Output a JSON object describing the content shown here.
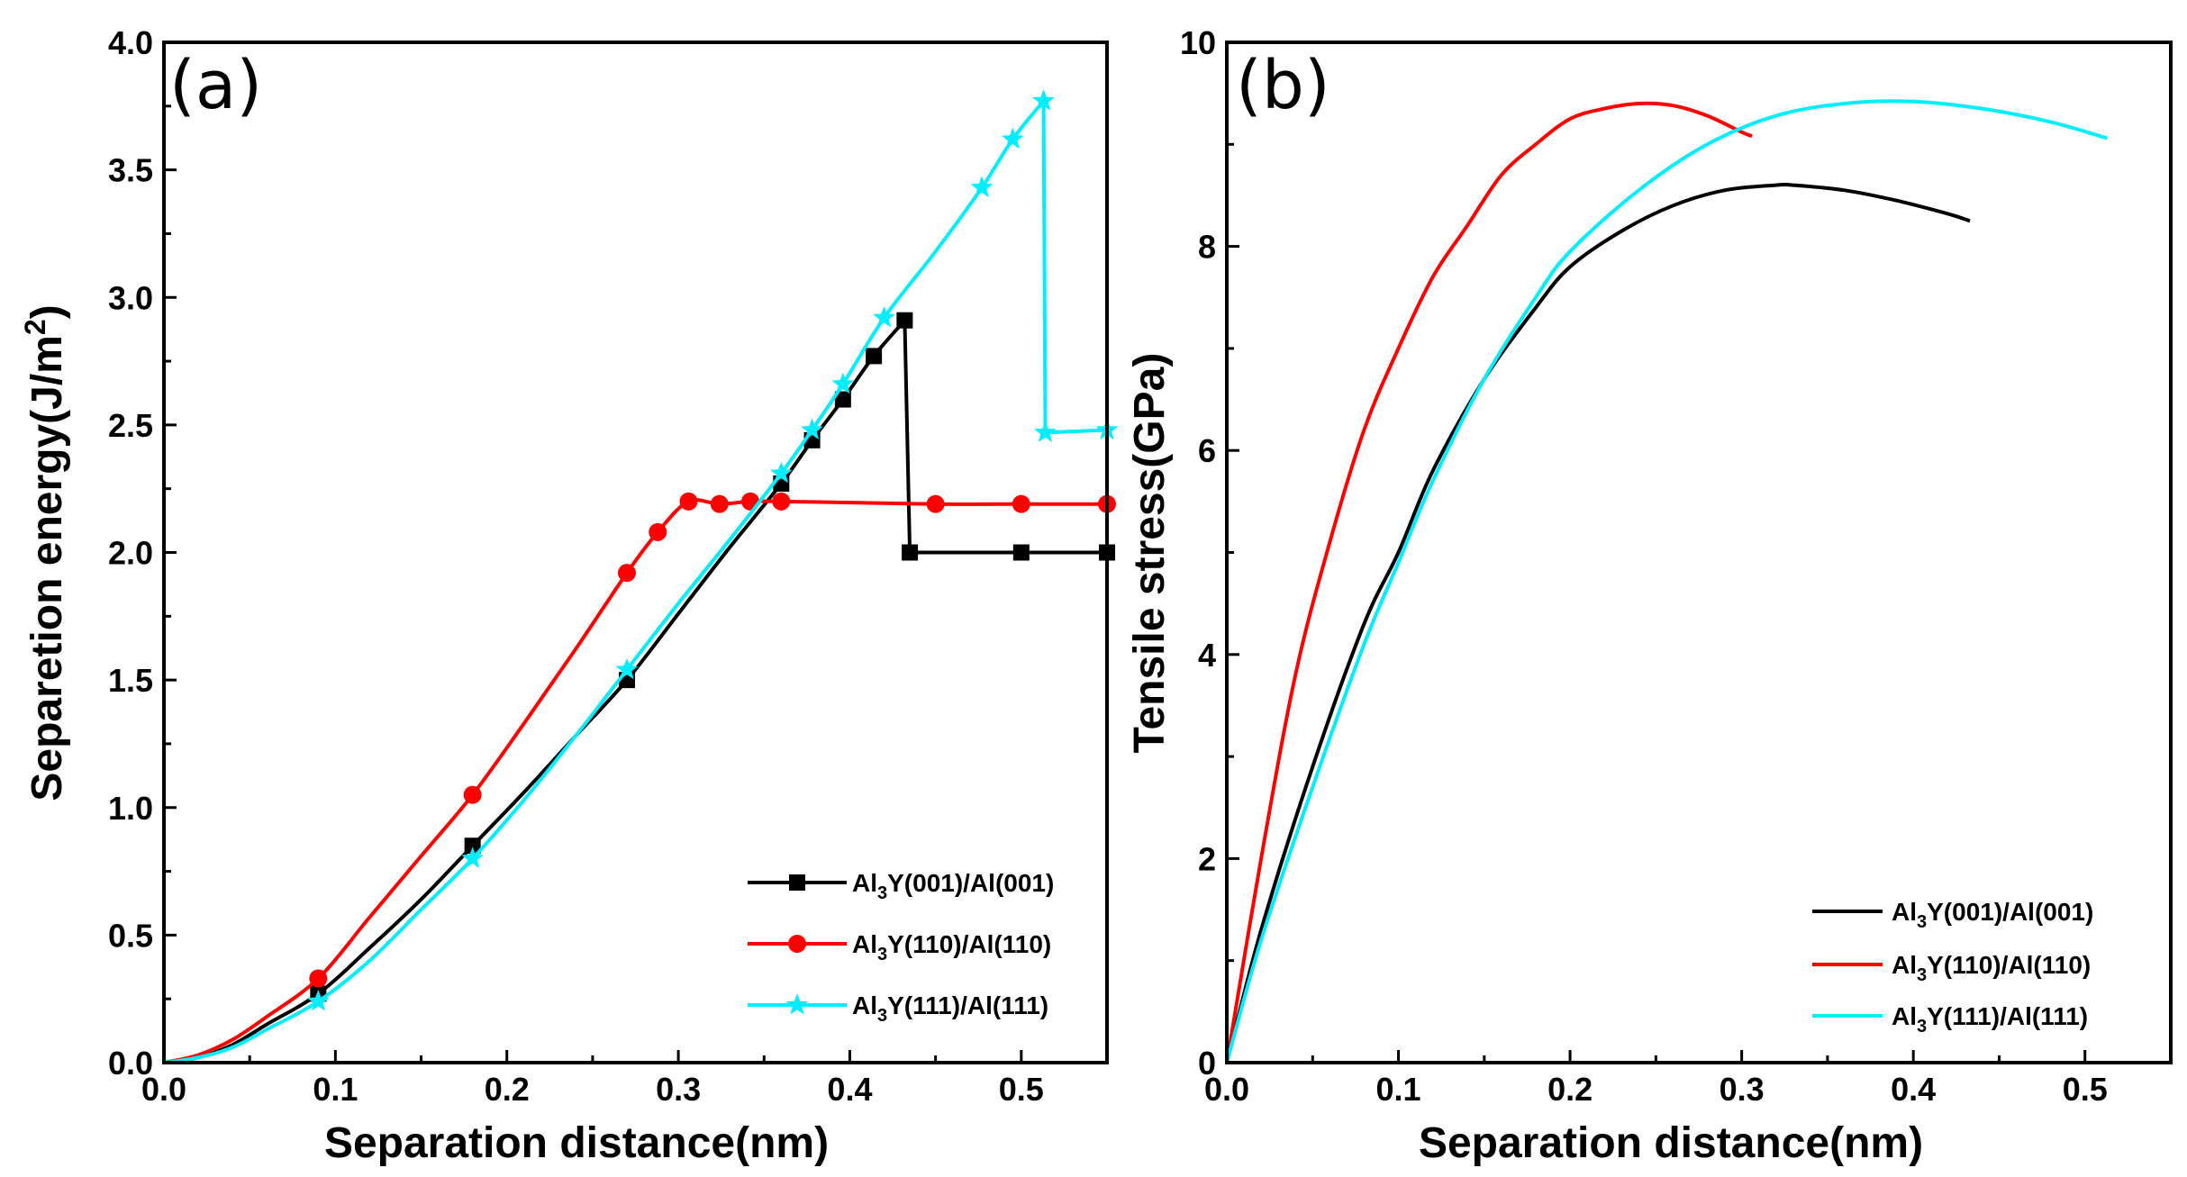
{
  "chart_data": [
    {
      "type": "line",
      "panel_label": "(a)",
      "xlabel": "Separation distance(nm)",
      "ylabel": "Separetion energy(J/m",
      "ylabel_sup": "2",
      "ylabel_end": ")",
      "xlim": [
        0.0,
        0.55
      ],
      "ylim": [
        0.0,
        4.0
      ],
      "xticks": [
        "0.0",
        "0.1",
        "0.2",
        "0.3",
        "0.4",
        "0.5"
      ],
      "xtick_values": [
        0.0,
        0.1,
        0.2,
        0.3,
        0.4,
        0.5
      ],
      "yticks": [
        "0.0",
        "0.5",
        "1.0",
        "1.5",
        "2.0",
        "2.5",
        "3.0",
        "3.5",
        "4.0"
      ],
      "ytick_values": [
        0.0,
        0.5,
        1.0,
        1.5,
        2.0,
        2.5,
        3.0,
        3.5,
        4.0
      ],
      "legend_position": "bottom-right",
      "series": [
        {
          "name": "Al3Y(001)/Al(001)",
          "label_pre": "Al",
          "label_sub": "3",
          "label_post": "Y(001)/Al(001)",
          "color": "#000000",
          "marker": "square",
          "line_x": [
            0.0,
            0.02,
            0.04,
            0.06,
            0.09,
            0.12,
            0.15,
            0.18,
            0.21,
            0.24,
            0.27,
            0.3,
            0.33,
            0.36,
            0.378,
            0.396,
            0.414,
            0.432,
            0.435,
            0.5,
            0.55
          ],
          "line_y": [
            0.0,
            0.02,
            0.07,
            0.15,
            0.27,
            0.45,
            0.64,
            0.85,
            1.06,
            1.28,
            1.5,
            1.76,
            2.02,
            2.27,
            2.44,
            2.6,
            2.77,
            2.91,
            2.0,
            2.0,
            2.0
          ],
          "marker_x": [
            0.09,
            0.18,
            0.27,
            0.36,
            0.378,
            0.396,
            0.414,
            0.432,
            0.435,
            0.5,
            0.55
          ],
          "marker_y": [
            0.27,
            0.85,
            1.5,
            2.27,
            2.44,
            2.6,
            2.77,
            2.91,
            2.0,
            2.0,
            2.0
          ]
        },
        {
          "name": "Al3Y(110)/Al(110)",
          "label_pre": "Al",
          "label_sub": "3",
          "label_post": "Y(110)/Al(110)",
          "color": "#ff0000",
          "marker": "circle",
          "line_x": [
            0.0,
            0.02,
            0.04,
            0.06,
            0.09,
            0.12,
            0.15,
            0.18,
            0.21,
            0.24,
            0.27,
            0.288,
            0.306,
            0.324,
            0.342,
            0.36,
            0.45,
            0.5,
            0.55
          ],
          "line_y": [
            0.0,
            0.03,
            0.09,
            0.18,
            0.33,
            0.57,
            0.81,
            1.05,
            1.33,
            1.62,
            1.92,
            2.08,
            2.2,
            2.19,
            2.2,
            2.2,
            2.19,
            2.19,
            2.19
          ],
          "marker_x": [
            0.09,
            0.18,
            0.27,
            0.288,
            0.306,
            0.324,
            0.342,
            0.36,
            0.45,
            0.5,
            0.55
          ],
          "marker_y": [
            0.33,
            1.05,
            1.92,
            2.08,
            2.2,
            2.19,
            2.2,
            2.2,
            2.19,
            2.19,
            2.19
          ]
        },
        {
          "name": "Al3Y(111)/Al(111)",
          "label_pre": "Al",
          "label_sub": "3",
          "label_post": "Y(111)/Al(111)",
          "color": "#00eeff",
          "marker": "star",
          "line_x": [
            0.0,
            0.02,
            0.04,
            0.06,
            0.09,
            0.12,
            0.15,
            0.18,
            0.21,
            0.24,
            0.27,
            0.3,
            0.33,
            0.36,
            0.378,
            0.396,
            0.42,
            0.45,
            0.477,
            0.495,
            0.513,
            0.514,
            0.55
          ],
          "line_y": [
            0.0,
            0.02,
            0.06,
            0.13,
            0.24,
            0.4,
            0.6,
            0.8,
            1.03,
            1.28,
            1.54,
            1.8,
            2.05,
            2.31,
            2.48,
            2.66,
            2.92,
            3.18,
            3.43,
            3.62,
            3.77,
            2.47,
            2.48
          ],
          "marker_x": [
            0.09,
            0.18,
            0.27,
            0.36,
            0.378,
            0.396,
            0.42,
            0.477,
            0.495,
            0.513,
            0.514,
            0.55
          ],
          "marker_y": [
            0.24,
            0.8,
            1.54,
            2.31,
            2.48,
            2.66,
            2.92,
            3.43,
            3.62,
            3.77,
            2.47,
            2.48
          ]
        }
      ]
    },
    {
      "type": "line",
      "panel_label": "(b)",
      "xlabel": "Separation distance(nm)",
      "ylabel": "Tensile stress(GPa)",
      "xlim": [
        0.0,
        0.55
      ],
      "ylim": [
        0,
        10
      ],
      "xticks": [
        "0.0",
        "0.1",
        "0.2",
        "0.3",
        "0.4",
        "0.5"
      ],
      "xtick_values": [
        0.0,
        0.1,
        0.2,
        0.3,
        0.4,
        0.5
      ],
      "yticks": [
        "0",
        "2",
        "4",
        "6",
        "8",
        "10"
      ],
      "ytick_values": [
        0,
        2,
        4,
        6,
        8,
        10
      ],
      "legend_position": "bottom-right",
      "series": [
        {
          "name": "Al3Y(001)/Al(001)",
          "label_pre": "Al",
          "label_sub": "3",
          "label_post": "Y(001)/Al(001)",
          "color": "#000000",
          "x": [
            0.0,
            0.02,
            0.05,
            0.08,
            0.1,
            0.12,
            0.15,
            0.18,
            0.2,
            0.23,
            0.26,
            0.29,
            0.32,
            0.33,
            0.36,
            0.39,
            0.42,
            0.433
          ],
          "y": [
            0.0,
            1.3,
            2.9,
            4.3,
            5.0,
            5.8,
            6.7,
            7.4,
            7.8,
            8.15,
            8.4,
            8.55,
            8.6,
            8.6,
            8.55,
            8.45,
            8.32,
            8.25
          ]
        },
        {
          "name": "Al3Y(110)/Al(110)",
          "label_pre": "Al",
          "label_sub": "3",
          "label_post": "Y(110)/Al(110)",
          "color": "#ff0000",
          "x": [
            0.0,
            0.02,
            0.04,
            0.06,
            0.08,
            0.1,
            0.12,
            0.14,
            0.16,
            0.18,
            0.2,
            0.22,
            0.24,
            0.26,
            0.28,
            0.3,
            0.306
          ],
          "y": [
            0.0,
            2.0,
            3.8,
            5.1,
            6.2,
            7.0,
            7.7,
            8.2,
            8.7,
            9.0,
            9.25,
            9.35,
            9.4,
            9.38,
            9.28,
            9.12,
            9.08
          ]
        },
        {
          "name": "Al3Y(111)/Al(111)",
          "label_pre": "Al",
          "label_sub": "3",
          "label_post": "Y(111)/Al(111)",
          "color": "#00eeff",
          "x": [
            0.0,
            0.02,
            0.05,
            0.08,
            0.1,
            0.12,
            0.15,
            0.18,
            0.2,
            0.24,
            0.28,
            0.32,
            0.36,
            0.4,
            0.44,
            0.48,
            0.513
          ],
          "y": [
            0.0,
            1.2,
            2.7,
            4.1,
            4.9,
            5.7,
            6.7,
            7.5,
            7.95,
            8.55,
            9.0,
            9.28,
            9.4,
            9.42,
            9.35,
            9.22,
            9.06
          ]
        }
      ]
    }
  ]
}
